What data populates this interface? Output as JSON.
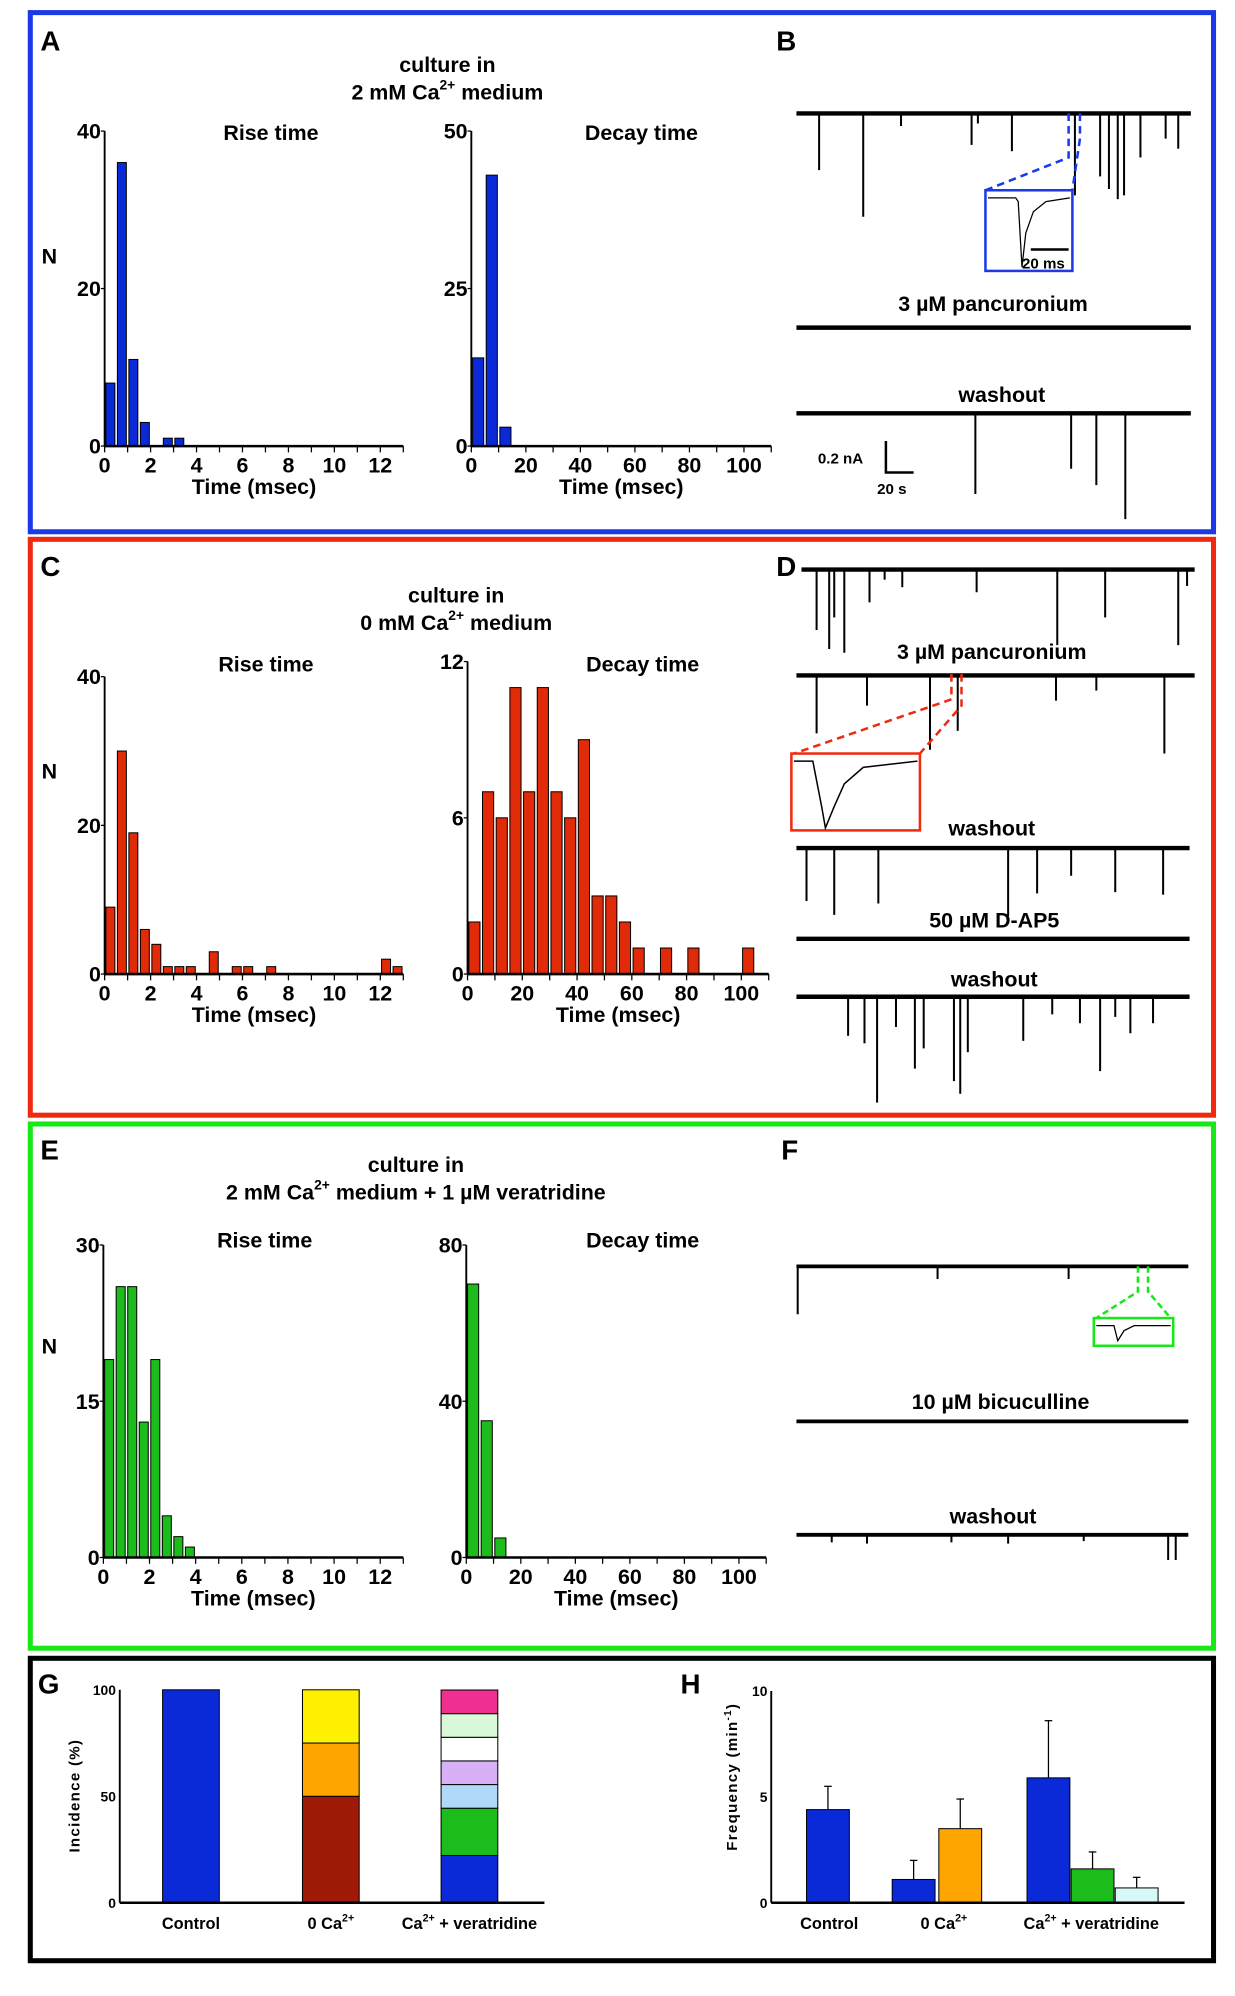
{
  "colors": {
    "panel_a_border": "#1a3ae8",
    "panel_c_border": "#f02a10",
    "panel_e_border": "#18e818",
    "panel_g_border": "#000000",
    "blue": "#0a2ad8",
    "red": "#e02a08",
    "green": "#1cbc1c",
    "dark_red": "#a01a08",
    "orange": "#ffa500",
    "yellow": "#fff000",
    "pink": "#f03090",
    "light_green": "#d8f8d8",
    "white": "#ffffff",
    "lavender": "#d8b0f8",
    "light_blue": "#b0d8f8",
    "light_cyan": "#d8f8f8"
  },
  "panels": {
    "A": {
      "letter": "A",
      "title_line1": "culture in",
      "title_pre": "2 mM Ca",
      "title_sup": "2+",
      "title_post": " medium",
      "ylabel": "N"
    },
    "B": {
      "letter": "B",
      "inset_scale": "20 ms",
      "label_drug": "3 µM pancuronium",
      "label_washout": "washout",
      "scale_y": "0.2 nA",
      "scale_x": "20 s"
    },
    "C": {
      "letter": "C",
      "title_line1": "culture in",
      "title_pre": "0 mM Ca",
      "title_sup": "2+",
      "title_post": " medium",
      "ylabel": "N"
    },
    "D": {
      "letter": "D",
      "label_drug1": "3 µM pancuronium",
      "label_washout1": "washout",
      "label_drug2": "50 µM D-AP5",
      "label_washout2": "washout"
    },
    "E": {
      "letter": "E",
      "title_line1": "culture in",
      "title_pre": "2 mM Ca",
      "title_sup": "2+",
      "title_post": " medium + 1 µM veratridine",
      "ylabel": "N"
    },
    "F": {
      "letter": "F",
      "label_drug": "10 µM bicuculline",
      "label_washout": "washout"
    },
    "G": {
      "letter": "G"
    },
    "H": {
      "letter": "H"
    }
  },
  "chart_data": [
    {
      "id": "A-rise",
      "type": "bar",
      "title": "Rise  time",
      "xlabel": "Time (msec)",
      "ylabel": "N",
      "color": "#0a2ad8",
      "bin_width": 0.5,
      "x": [
        0.25,
        0.75,
        1.25,
        1.75,
        2.75,
        3.25
      ],
      "values": [
        8,
        36,
        11,
        3,
        1,
        1
      ],
      "xlim": [
        0,
        13
      ],
      "ylim": [
        0,
        40
      ],
      "xticks": [
        0,
        2,
        4,
        6,
        8,
        10,
        12
      ],
      "yticks": [
        0,
        20,
        40
      ]
    },
    {
      "id": "A-decay",
      "type": "bar",
      "title": "Decay  time",
      "xlabel": "Time (msec)",
      "color": "#0a2ad8",
      "bin_width": 5,
      "x": [
        2.5,
        7.5,
        12.5
      ],
      "values": [
        14,
        43,
        3
      ],
      "xlim": [
        0,
        110
      ],
      "ylim": [
        0,
        50
      ],
      "xticks": [
        0,
        20,
        40,
        60,
        80,
        100
      ],
      "yticks": [
        0,
        25,
        50
      ]
    },
    {
      "id": "C-rise",
      "type": "bar",
      "title": "Rise  time",
      "xlabel": "Time (msec)",
      "ylabel": "N",
      "color": "#e02a08",
      "bin_width": 0.5,
      "x": [
        0.25,
        0.75,
        1.25,
        1.75,
        2.25,
        2.75,
        3.25,
        3.75,
        4.75,
        5.75,
        6.25,
        7.25,
        12.25,
        12.75
      ],
      "values": [
        9,
        30,
        19,
        6,
        4,
        1,
        1,
        1,
        3,
        1,
        1,
        1,
        2,
        1
      ],
      "xlim": [
        0,
        13
      ],
      "ylim": [
        0,
        40
      ],
      "xticks": [
        0,
        2,
        4,
        6,
        8,
        10,
        12
      ],
      "yticks": [
        0,
        20,
        40
      ]
    },
    {
      "id": "C-decay",
      "type": "bar",
      "title": "Decay  time",
      "xlabel": "Time (msec)",
      "color": "#e02a08",
      "bin_width": 5,
      "x": [
        2.5,
        7.5,
        12.5,
        17.5,
        22.5,
        27.5,
        32.5,
        37.5,
        42.5,
        47.5,
        52.5,
        57.5,
        62.5,
        72.5,
        82.5,
        102.5
      ],
      "values": [
        2,
        7,
        6,
        11,
        7,
        11,
        7,
        6,
        9,
        3,
        3,
        2,
        1,
        1,
        1,
        1
      ],
      "xlim": [
        0,
        110
      ],
      "ylim": [
        0,
        12
      ],
      "xticks": [
        0,
        20,
        40,
        60,
        80,
        100
      ],
      "yticks": [
        0,
        6,
        12
      ]
    },
    {
      "id": "E-rise",
      "type": "bar",
      "title": "Rise  time",
      "xlabel": "Time (msec)",
      "ylabel": "N",
      "color": "#1cbc1c",
      "bin_width": 0.5,
      "x": [
        0.25,
        0.75,
        1.25,
        1.75,
        2.25,
        2.75,
        3.25,
        3.75
      ],
      "values": [
        19,
        26,
        26,
        13,
        19,
        4,
        2,
        1
      ],
      "xlim": [
        0,
        13
      ],
      "ylim": [
        0,
        30
      ],
      "xticks": [
        0,
        2,
        4,
        6,
        8,
        10,
        12
      ],
      "yticks": [
        0,
        15,
        30
      ]
    },
    {
      "id": "E-decay",
      "type": "bar",
      "title": "Decay  time",
      "xlabel": "Time (msec)",
      "color": "#1cbc1c",
      "bin_width": 5,
      "x": [
        2.5,
        7.5,
        12.5
      ],
      "values": [
        70,
        35,
        5
      ],
      "xlim": [
        0,
        110
      ],
      "ylim": [
        0,
        80
      ],
      "xticks": [
        0,
        20,
        40,
        60,
        80,
        100
      ],
      "yticks": [
        0,
        40,
        80
      ]
    },
    {
      "id": "G",
      "type": "bar",
      "stacked": true,
      "ylabel": "Incidence (%)",
      "ylim": [
        0,
        100
      ],
      "yticks": [
        0,
        50,
        100
      ],
      "categories": [
        {
          "pre": "Control",
          "sup": "",
          "post": ""
        },
        {
          "pre": "0 Ca",
          "sup": "2+",
          "post": ""
        },
        {
          "pre": "Ca",
          "sup": "2+",
          "post": " + veratridine"
        }
      ],
      "stacks": [
        [
          {
            "value": 100,
            "color": "#0a2ad8"
          }
        ],
        [
          {
            "value": 50,
            "color": "#a01a08"
          },
          {
            "value": 25,
            "color": "#ffa500"
          },
          {
            "value": 25,
            "color": "#fff000"
          }
        ],
        [
          {
            "value": 22.2,
            "color": "#0a2ad8"
          },
          {
            "value": 22.2,
            "color": "#1cbc1c"
          },
          {
            "value": 11.1,
            "color": "#b0d8f8"
          },
          {
            "value": 11.1,
            "color": "#d8b0f8"
          },
          {
            "value": 11.1,
            "color": "#ffffff"
          },
          {
            "value": 11.1,
            "color": "#d8f8d8"
          },
          {
            "value": 11.1,
            "color": "#f03090"
          }
        ]
      ]
    },
    {
      "id": "H",
      "type": "bar",
      "ylabel_pre": "Frequency (min",
      "ylabel_sup": "-1",
      "ylabel_post": ")",
      "ylim": [
        0,
        10
      ],
      "yticks": [
        0,
        5,
        10
      ],
      "categories": [
        {
          "pre": "Control",
          "sup": "",
          "post": ""
        },
        {
          "pre": "0 Ca",
          "sup": "2+",
          "post": ""
        },
        {
          "pre": "Ca",
          "sup": "2+",
          "post": " + veratridine"
        }
      ],
      "groups": [
        [
          {
            "value": 4.4,
            "error": 1.1,
            "color": "#0a2ad8"
          }
        ],
        [
          {
            "value": 1.1,
            "error": 0.9,
            "color": "#0a2ad8"
          },
          {
            "value": 3.5,
            "error": 1.4,
            "color": "#ffa500"
          }
        ],
        [
          {
            "value": 5.9,
            "error": 2.7,
            "color": "#0a2ad8"
          },
          {
            "value": 1.6,
            "error": 0.8,
            "color": "#1cbc1c"
          },
          {
            "value": 0.7,
            "error": 0.5,
            "color": "#d8f8f8"
          }
        ]
      ]
    }
  ]
}
